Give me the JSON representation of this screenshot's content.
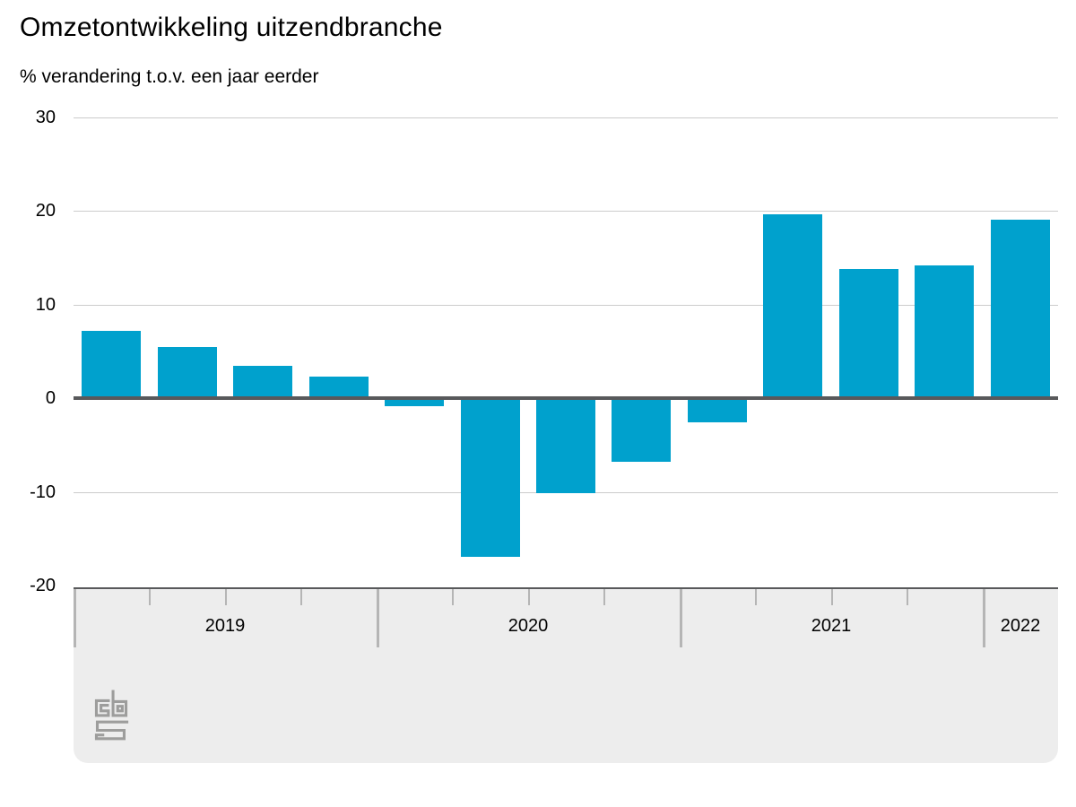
{
  "title": "Omzetontwikkeling uitzendbranche",
  "subtitle": "% verandering t.o.v. een jaar eerder",
  "colors": {
    "bar": "#00a1cd",
    "zero_line": "#58595b",
    "gridline": "#cccccc",
    "band_background": "#ededed",
    "band_top_border": "#58595b",
    "tick": "#b5b5b5",
    "text": "#000000",
    "logo": "#9d9d9c"
  },
  "y_axis": {
    "tick_labels": [
      "30",
      "20",
      "10",
      "0",
      "-10",
      "-20"
    ],
    "tick_values": [
      30,
      20,
      10,
      0,
      -10,
      -20
    ]
  },
  "x_axis": {
    "years": [
      {
        "label": "2019",
        "quarters": 4
      },
      {
        "label": "2020",
        "quarters": 4
      },
      {
        "label": "2021",
        "quarters": 4
      },
      {
        "label": "2022",
        "quarters": 1
      }
    ]
  },
  "chart_data": {
    "type": "bar",
    "title": "Omzetontwikkeling uitzendbranche",
    "ylabel": "% verandering t.o.v. een jaar eerder",
    "xlabel": "",
    "ylim": [
      -20,
      30
    ],
    "grid": "horizontal, every 10 units",
    "legend": "none",
    "categories": [
      "2019 Q1",
      "2019 Q2",
      "2019 Q3",
      "2019 Q4",
      "2020 Q1",
      "2020 Q2",
      "2020 Q3",
      "2020 Q4",
      "2021 Q1",
      "2021 Q2",
      "2021 Q3",
      "2021 Q4",
      "2022 Q1"
    ],
    "values": [
      7.2,
      5.5,
      3.4,
      2.3,
      -0.9,
      -16.9,
      -10.1,
      -6.8,
      -2.6,
      19.6,
      13.8,
      14.2,
      19.0
    ]
  },
  "logo": {
    "letters": "cbs"
  }
}
